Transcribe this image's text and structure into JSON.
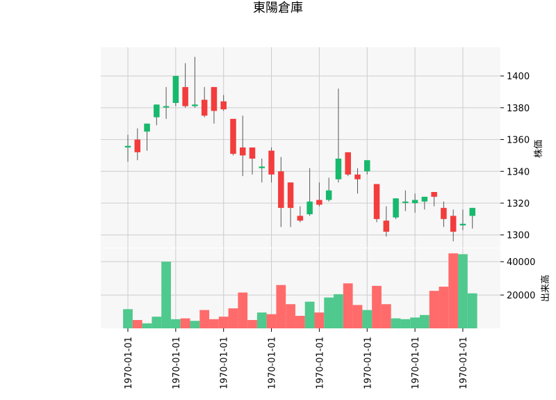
{
  "chart_data": {
    "type": "candlestick",
    "title": "東陽倉庫",
    "colors": {
      "up": "#17b96c",
      "down": "#f33c3c",
      "up_volume": "#4fc98d",
      "down_volume": "#ff6b6b",
      "wick": "#555555",
      "panel_bg": "#f7f7f7",
      "grid": "#cccccc"
    },
    "grid": true,
    "price_panel": {
      "ylabel": "株価",
      "ylim": [
        1292,
        1418
      ],
      "yticks": [
        1300,
        1320,
        1340,
        1360,
        1380,
        1400
      ],
      "ytick_labels": [
        "1300",
        "1320",
        "1340",
        "1360",
        "1380",
        "1400"
      ]
    },
    "volume_panel": {
      "ylabel": "出来高",
      "ylim": [
        0,
        48000
      ],
      "yticks": [
        20000,
        40000
      ],
      "ytick_labels": [
        "20000",
        "40000"
      ]
    },
    "xtick_positions": [
      0,
      5,
      10,
      15,
      20,
      25,
      30,
      35
    ],
    "xtick_labels": [
      "1970-01-01",
      "1970-01-01",
      "1970-01-01",
      "1970-01-01",
      "1970-01-01",
      "1970-01-01",
      "1970-01-01",
      "1970-01-01"
    ],
    "ohlcv": [
      {
        "o": 1355,
        "h": 1363,
        "l": 1346,
        "c": 1356,
        "v": 11500
      },
      {
        "o": 1360,
        "h": 1367,
        "l": 1347,
        "c": 1352,
        "v": 5000
      },
      {
        "o": 1365,
        "h": 1370,
        "l": 1353,
        "c": 1370,
        "v": 3000
      },
      {
        "o": 1374,
        "h": 1382,
        "l": 1369,
        "c": 1382,
        "v": 7000
      },
      {
        "o": 1381,
        "h": 1393,
        "l": 1373,
        "c": 1381,
        "v": 40000
      },
      {
        "o": 1383,
        "h": 1400,
        "l": 1381,
        "c": 1400,
        "v": 5500
      },
      {
        "o": 1393,
        "h": 1408,
        "l": 1380,
        "c": 1381,
        "v": 6000
      },
      {
        "o": 1381,
        "h": 1412,
        "l": 1380,
        "c": 1382,
        "v": 4500
      },
      {
        "o": 1385,
        "h": 1393,
        "l": 1374,
        "c": 1375,
        "v": 11000
      },
      {
        "o": 1393,
        "h": 1393,
        "l": 1370,
        "c": 1378,
        "v": 5500
      },
      {
        "o": 1384,
        "h": 1388,
        "l": 1378,
        "c": 1379,
        "v": 7000
      },
      {
        "o": 1373,
        "h": 1373,
        "l": 1350,
        "c": 1351,
        "v": 12000
      },
      {
        "o": 1355,
        "h": 1375,
        "l": 1337,
        "c": 1350,
        "v": 21500
      },
      {
        "o": 1355,
        "h": 1355,
        "l": 1338,
        "c": 1348,
        "v": 5000
      },
      {
        "o": 1342,
        "h": 1348,
        "l": 1333,
        "c": 1343,
        "v": 9500
      },
      {
        "o": 1353,
        "h": 1355,
        "l": 1333,
        "c": 1338,
        "v": 8500
      },
      {
        "o": 1340,
        "h": 1349,
        "l": 1305,
        "c": 1317,
        "v": 26000
      },
      {
        "o": 1333,
        "h": 1333,
        "l": 1305,
        "c": 1317,
        "v": 14500
      },
      {
        "o": 1312,
        "h": 1318,
        "l": 1308,
        "c": 1309,
        "v": 7500
      },
      {
        "o": 1313,
        "h": 1342,
        "l": 1312,
        "c": 1321,
        "v": 16000
      },
      {
        "o": 1322,
        "h": 1333,
        "l": 1318,
        "c": 1319,
        "v": 9500
      },
      {
        "o": 1322,
        "h": 1336,
        "l": 1321,
        "c": 1328,
        "v": 18500
      },
      {
        "o": 1335,
        "h": 1392,
        "l": 1333,
        "c": 1348,
        "v": 20500
      },
      {
        "o": 1352,
        "h": 1352,
        "l": 1337,
        "c": 1338,
        "v": 27000
      },
      {
        "o": 1338,
        "h": 1342,
        "l": 1326,
        "c": 1335,
        "v": 14000
      },
      {
        "o": 1340,
        "h": 1347,
        "l": 1338,
        "c": 1347,
        "v": 11000
      },
      {
        "o": 1332,
        "h": 1332,
        "l": 1308,
        "c": 1310,
        "v": 25500
      },
      {
        "o": 1309,
        "h": 1318,
        "l": 1299,
        "c": 1302,
        "v": 14500
      },
      {
        "o": 1311,
        "h": 1323,
        "l": 1310,
        "c": 1323,
        "v": 6000
      },
      {
        "o": 1321,
        "h": 1328,
        "l": 1315,
        "c": 1321,
        "v": 5500
      },
      {
        "o": 1320,
        "h": 1326,
        "l": 1314,
        "c": 1322,
        "v": 6500
      },
      {
        "o": 1321,
        "h": 1324,
        "l": 1316,
        "c": 1324,
        "v": 8000
      },
      {
        "o": 1327,
        "h": 1327,
        "l": 1318,
        "c": 1324,
        "v": 22500
      },
      {
        "o": 1317,
        "h": 1321,
        "l": 1305,
        "c": 1310,
        "v": 25000
      },
      {
        "o": 1312,
        "h": 1316,
        "l": 1296,
        "c": 1302,
        "v": 45000
      },
      {
        "o": 1306,
        "h": 1316,
        "l": 1303,
        "c": 1307,
        "v": 44500
      },
      {
        "o": 1312,
        "h": 1317,
        "l": 1304,
        "c": 1317,
        "v": 21000
      }
    ]
  }
}
